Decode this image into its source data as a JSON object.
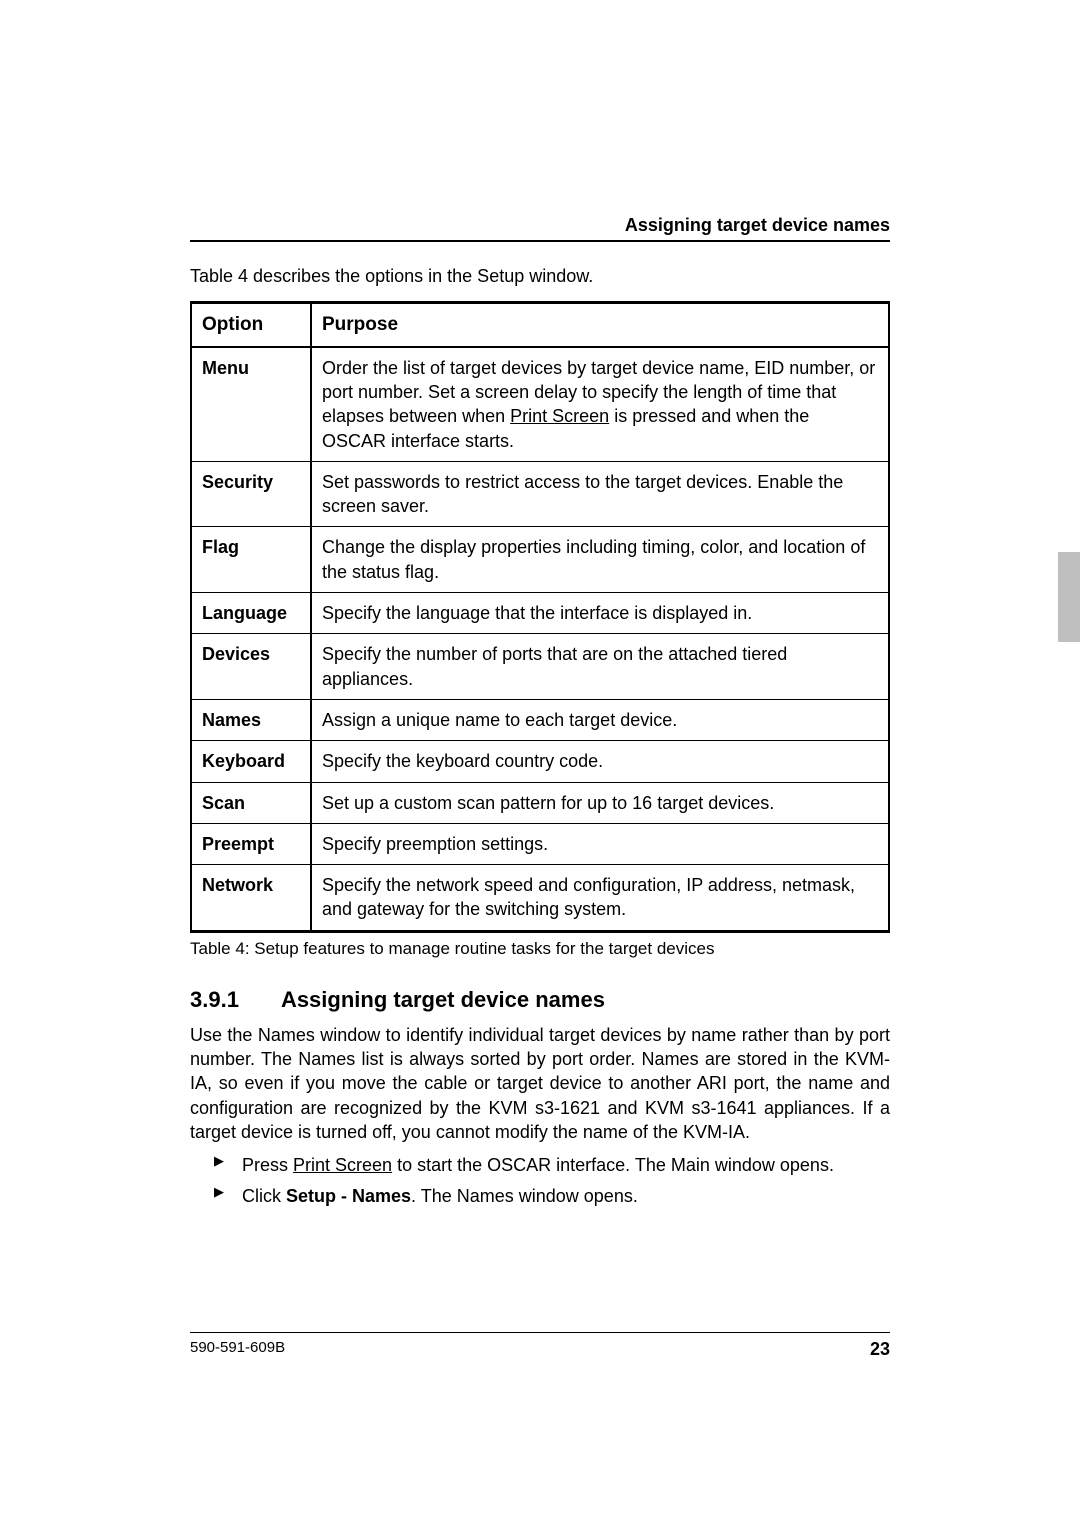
{
  "runningHead": "Assigning target device names",
  "intro": "Table 4 describes the options in the Setup window.",
  "table": {
    "headers": [
      "Option",
      "Purpose"
    ],
    "rows": [
      {
        "option": "Menu",
        "purpose": {
          "pre": "Order the list of target devices by target device name, EID number, or port number. Set a screen delay to specify the length of time that elapses between when ",
          "underlined": "Print Screen",
          "post": " is pressed and when the OSCAR interface starts."
        }
      },
      {
        "option": "Security",
        "purpose": {
          "text": "Set passwords to restrict access to the target devices. Enable the screen saver."
        }
      },
      {
        "option": "Flag",
        "purpose": {
          "text": "Change the display properties including timing, color, and location of the status flag."
        }
      },
      {
        "option": "Language",
        "purpose": {
          "text": "Specify the language that the interface is displayed in."
        }
      },
      {
        "option": "Devices",
        "purpose": {
          "text": "Specify the number of ports that are on the attached tiered appliances."
        }
      },
      {
        "option": "Names",
        "purpose": {
          "text": "Assign a unique name to each target device."
        }
      },
      {
        "option": "Keyboard",
        "purpose": {
          "text": "Specify the keyboard country code."
        }
      },
      {
        "option": "Scan",
        "purpose": {
          "text": "Set up a custom scan pattern for up to 16 target devices."
        }
      },
      {
        "option": "Preempt",
        "purpose": {
          "text": "Specify preemption settings."
        }
      },
      {
        "option": "Network",
        "purpose": {
          "text": "Specify the network speed and configuration, IP address, netmask, and gateway for the switching system."
        }
      }
    ],
    "caption": "Table 4: Setup features to manage routine tasks for the target devices"
  },
  "section": {
    "number": "3.9.1",
    "title": "Assigning target device names",
    "paragraph": "Use the Names window to identify individual target devices by name rather than by port number. The Names list is always sorted by port order. Names are stored in the KVM-IA, so even if you move the cable or target device to another ARI port, the name and configuration are recognized by the KVM s3-1621 and KVM s3-1641 appliances. If a target device is turned off, you cannot modify the name of the KVM-IA.",
    "steps": [
      {
        "pre": "Press ",
        "underlined": "Print Screen",
        "post": " to start the OSCAR interface. The Main window opens."
      },
      {
        "pre": "Click ",
        "bold": "Setup - Names",
        "post": ". The Names window opens."
      }
    ]
  },
  "footer": {
    "docnum": "590-591-609B",
    "page": "23"
  }
}
